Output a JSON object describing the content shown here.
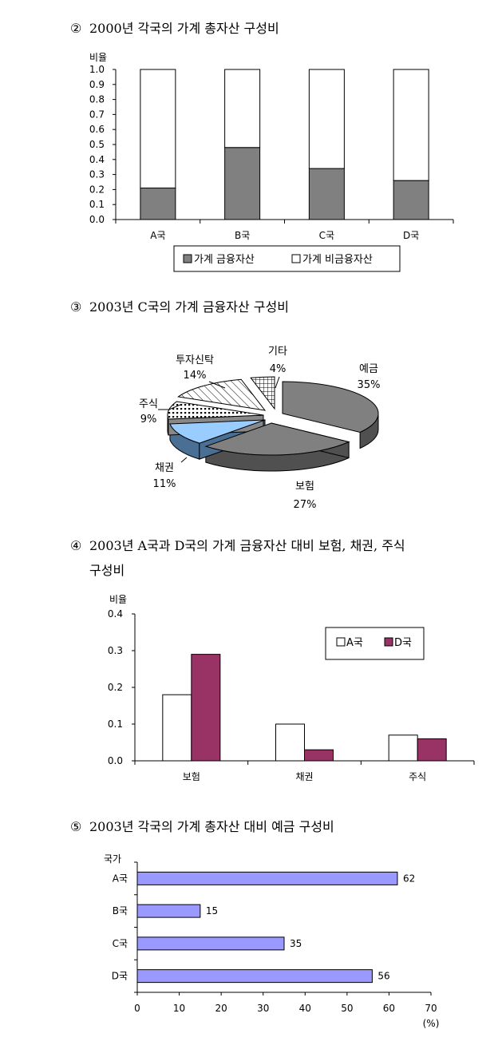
{
  "sections": [
    {
      "num": "②",
      "title": "2000년 각국의 가계 총자산 구성비"
    },
    {
      "num": "③",
      "title": "2003년 C국의 가계 금융자산 구성비"
    },
    {
      "num": "④",
      "title": "2003년 A국과 D국의 가계 금융자산 대비 보험, 채권, 주식",
      "title_cont": "구성비"
    },
    {
      "num": "⑤",
      "title": "2003년 각국의 가계 총자산 대비 예금 구성비"
    }
  ],
  "chart_data": [
    {
      "type": "bar",
      "stacked": true,
      "ylabel": "비율",
      "ylim": [
        0,
        1.0
      ],
      "yticks": [
        "0.0",
        "0.1",
        "0.2",
        "0.3",
        "0.4",
        "0.5",
        "0.6",
        "0.7",
        "0.8",
        "0.9",
        "1.0"
      ],
      "categories": [
        "A국",
        "B국",
        "C국",
        "D국"
      ],
      "series": [
        {
          "name": "가계 금융자산",
          "values": [
            0.21,
            0.48,
            0.34,
            0.26
          ],
          "color": "#808080"
        },
        {
          "name": "가계 비금융자산",
          "values": [
            0.79,
            0.52,
            0.66,
            0.74
          ],
          "color": "#ffffff"
        }
      ],
      "legend": "bottom"
    },
    {
      "type": "pie",
      "style": "3d",
      "slices": [
        {
          "label": "예금",
          "value": 35,
          "text": "35%",
          "fill": "gray"
        },
        {
          "label": "보험",
          "value": 27,
          "text": "27%",
          "fill": "gray"
        },
        {
          "label": "채권",
          "value": 11,
          "text": "11%",
          "fill": "lightblue"
        },
        {
          "label": "주식",
          "value": 9,
          "text": "9%",
          "fill": "dots"
        },
        {
          "label": "투자신탁",
          "value": 14,
          "text": "14%",
          "fill": "diagonal"
        },
        {
          "label": "기타",
          "value": 4,
          "text": "4%",
          "fill": "grid"
        }
      ]
    },
    {
      "type": "bar",
      "ylabel": "비율",
      "ylim": [
        0,
        0.4
      ],
      "yticks": [
        "0.0",
        "0.1",
        "0.2",
        "0.3",
        "0.4"
      ],
      "categories": [
        "보험",
        "채권",
        "주식"
      ],
      "series": [
        {
          "name": "A국",
          "values": [
            0.18,
            0.1,
            0.07
          ],
          "color": "#ffffff"
        },
        {
          "name": "D국",
          "values": [
            0.29,
            0.03,
            0.06
          ],
          "color": "#993366"
        }
      ],
      "legend": "top-right"
    },
    {
      "type": "bar",
      "orientation": "horizontal",
      "ylabel": "국가",
      "xlabel": "(%)",
      "xlim": [
        0,
        70
      ],
      "xticks": [
        "0",
        "10",
        "20",
        "30",
        "40",
        "50",
        "60",
        "70"
      ],
      "categories": [
        "A국",
        "B국",
        "C국",
        "D국"
      ],
      "values": [
        62,
        15,
        35,
        56
      ],
      "value_labels": [
        "62",
        "15",
        "35",
        "56"
      ],
      "color": "#9999ff"
    }
  ]
}
